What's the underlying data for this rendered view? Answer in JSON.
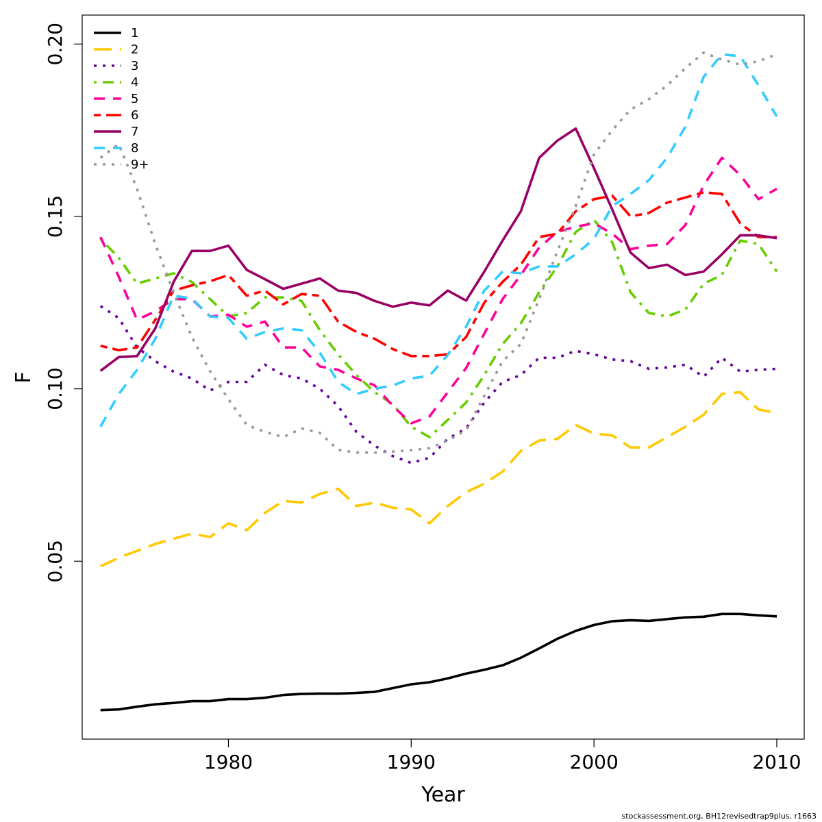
{
  "chart_data": {
    "type": "line",
    "title": "",
    "xlabel": "Year",
    "ylabel": "F",
    "xlim": [
      1972,
      2011.5
    ],
    "ylim": [
      0.0,
      0.2
    ],
    "x_ticks": [
      1980,
      1990,
      2000,
      2010
    ],
    "x_tick_labels": [
      "1980",
      "1990",
      "2000",
      "2010"
    ],
    "y_ticks": [
      0.05,
      0.1,
      0.15,
      0.2
    ],
    "y_tick_labels": [
      "0.05",
      "0.10",
      "0.15",
      "0.20"
    ],
    "grid": false,
    "legend_position": "top-left",
    "x": [
      1973,
      1974,
      1975,
      1976,
      1977,
      1978,
      1979,
      1980,
      1981,
      1982,
      1983,
      1984,
      1985,
      1986,
      1987,
      1988,
      1989,
      1990,
      1991,
      1992,
      1993,
      1994,
      1995,
      1996,
      1997,
      1998,
      1999,
      2000,
      2001,
      2002,
      2003,
      2004,
      2005,
      2006,
      2007,
      2008,
      2009,
      2010
    ],
    "series": [
      {
        "name": "1",
        "color": "#000000",
        "dash": "solid",
        "values": [
          0.0068,
          0.007,
          0.0078,
          0.0085,
          0.0089,
          0.0094,
          0.0094,
          0.01,
          0.01,
          0.0104,
          0.0112,
          0.0115,
          0.0116,
          0.0116,
          0.0118,
          0.0121,
          0.0132,
          0.0143,
          0.0149,
          0.016,
          0.0174,
          0.0185,
          0.0198,
          0.022,
          0.0247,
          0.0275,
          0.0298,
          0.0315,
          0.0326,
          0.0329,
          0.0327,
          0.0332,
          0.0337,
          0.0339,
          0.0347,
          0.0347,
          0.0343,
          0.034
        ]
      },
      {
        "name": "2",
        "color": "#ffc800",
        "dash": "longdash",
        "values": [
          0.0485,
          0.051,
          0.053,
          0.055,
          0.0565,
          0.058,
          0.057,
          0.061,
          0.059,
          0.064,
          0.0675,
          0.067,
          0.0695,
          0.071,
          0.066,
          0.067,
          0.0655,
          0.065,
          0.061,
          0.066,
          0.07,
          0.0725,
          0.076,
          0.082,
          0.085,
          0.0855,
          0.0895,
          0.087,
          0.0865,
          0.083,
          0.083,
          0.086,
          0.089,
          0.0925,
          0.0985,
          0.099,
          0.094,
          0.093
        ]
      },
      {
        "name": "3",
        "color": "#660099",
        "dash": "dotted",
        "values": [
          0.124,
          0.1205,
          0.112,
          0.108,
          0.105,
          0.103,
          0.0995,
          0.102,
          0.102,
          0.107,
          0.104,
          0.103,
          0.1,
          0.095,
          0.0875,
          0.0835,
          0.0805,
          0.0785,
          0.08,
          0.0855,
          0.0885,
          0.096,
          0.102,
          0.104,
          0.109,
          0.109,
          0.111,
          0.11,
          0.1085,
          0.108,
          0.1058,
          0.1062,
          0.107,
          0.1035,
          0.109,
          0.105,
          0.1055,
          0.1058
        ]
      },
      {
        "name": "4",
        "color": "#66cc00",
        "dash": "dotdash",
        "values": [
          0.1435,
          0.138,
          0.1305,
          0.132,
          0.1335,
          0.131,
          0.126,
          0.121,
          0.122,
          0.1265,
          0.1265,
          0.1255,
          0.117,
          0.11,
          0.104,
          0.099,
          0.0955,
          0.089,
          0.086,
          0.091,
          0.096,
          0.104,
          0.113,
          0.119,
          0.128,
          0.1355,
          0.1455,
          0.149,
          0.1425,
          0.128,
          0.122,
          0.121,
          0.123,
          0.1305,
          0.133,
          0.143,
          0.142,
          0.134
        ]
      },
      {
        "name": "5",
        "color": "#ff0099",
        "dash": "dash",
        "values": [
          0.144,
          0.1325,
          0.12,
          0.1225,
          0.126,
          0.126,
          0.121,
          0.1215,
          0.118,
          0.1195,
          0.112,
          0.112,
          0.1065,
          0.1055,
          0.103,
          0.101,
          0.095,
          0.09,
          0.092,
          0.099,
          0.106,
          0.116,
          0.126,
          0.133,
          0.141,
          0.1455,
          0.147,
          0.148,
          0.145,
          0.1405,
          0.1415,
          0.142,
          0.1475,
          0.159,
          0.167,
          0.162,
          0.155,
          0.158
        ]
      },
      {
        "name": "6",
        "color": "#ff0000",
        "dash": "twodash",
        "values": [
          0.1125,
          0.1112,
          0.112,
          0.12,
          0.1285,
          0.13,
          0.1312,
          0.133,
          0.127,
          0.1285,
          0.1245,
          0.1275,
          0.127,
          0.1195,
          0.1165,
          0.1145,
          0.1115,
          0.1095,
          0.1095,
          0.11,
          0.115,
          0.125,
          0.131,
          0.136,
          0.144,
          0.145,
          0.1515,
          0.155,
          0.156,
          0.15,
          0.151,
          0.154,
          0.1555,
          0.157,
          0.1565,
          0.148,
          0.144,
          0.144
        ]
      },
      {
        "name": "7",
        "color": "#990066",
        "dash": "solid",
        "values": [
          0.1052,
          0.1092,
          0.1095,
          0.1175,
          0.131,
          0.14,
          0.14,
          0.1415,
          0.1345,
          0.1318,
          0.129,
          0.1305,
          0.132,
          0.1285,
          0.1278,
          0.1255,
          0.1238,
          0.125,
          0.1242,
          0.1285,
          0.1256,
          0.134,
          0.143,
          0.1515,
          0.167,
          0.172,
          0.1755,
          0.164,
          0.152,
          0.1395,
          0.135,
          0.136,
          0.133,
          0.134,
          0.139,
          0.1445,
          0.1445,
          0.1437
        ]
      },
      {
        "name": "8",
        "color": "#33ccff",
        "dash": "dash",
        "values": [
          0.089,
          0.0985,
          0.1055,
          0.1145,
          0.127,
          0.1262,
          0.121,
          0.1205,
          0.1145,
          0.1165,
          0.1175,
          0.117,
          0.1105,
          0.102,
          0.0985,
          0.1,
          0.101,
          0.103,
          0.1038,
          0.1098,
          0.118,
          0.1285,
          0.134,
          0.1335,
          0.1355,
          0.1355,
          0.139,
          0.1435,
          0.153,
          0.1565,
          0.1605,
          0.167,
          0.176,
          0.1905,
          0.197,
          0.1965,
          0.188,
          0.179
        ]
      },
      {
        "name": "9+",
        "color": "#999999",
        "dash": "dotted",
        "values": [
          0.167,
          0.171,
          0.158,
          0.142,
          0.128,
          0.115,
          0.105,
          0.097,
          0.0895,
          0.0875,
          0.086,
          0.0885,
          0.0872,
          0.0823,
          0.0815,
          0.0815,
          0.0818,
          0.0822,
          0.0828,
          0.085,
          0.088,
          0.098,
          0.108,
          0.113,
          0.126,
          0.14,
          0.153,
          0.168,
          0.175,
          0.181,
          0.184,
          0.188,
          0.193,
          0.1975,
          0.1955,
          0.194,
          0.195,
          0.197
        ]
      }
    ]
  },
  "footer_text": "stockassessment.org, BH12revisedtrap9plus, r1663"
}
